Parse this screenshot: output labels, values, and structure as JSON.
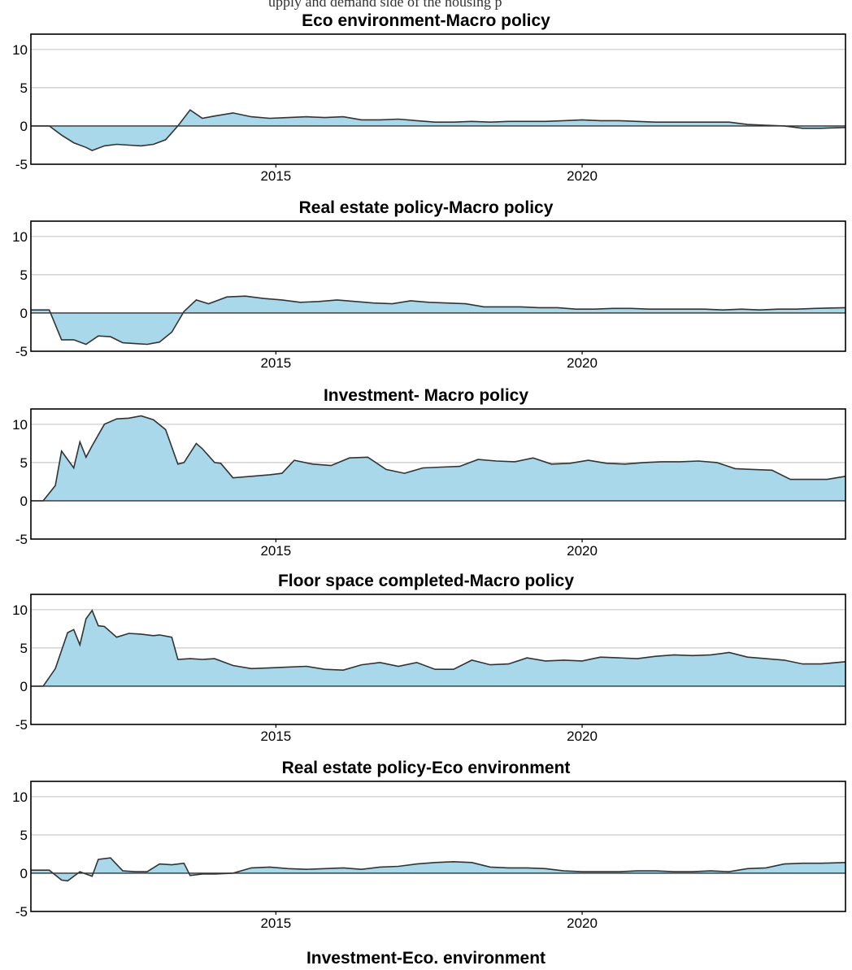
{
  "top_fragment": "upply and demand side of the housing p",
  "chart_data": [
    {
      "type": "area",
      "title": "Eco environment-Macro policy",
      "xlabel": "",
      "ylabel": "",
      "xlim": [
        2011.0,
        2024.3
      ],
      "ylim": [
        -5,
        12
      ],
      "yticks": [
        10,
        5,
        0,
        -5
      ],
      "xticks": [
        2015,
        2020
      ],
      "grid": true,
      "fill": "#a8d8ea",
      "x": [
        2011.0,
        2011.3,
        2011.5,
        2011.7,
        2011.9,
        2012.0,
        2012.2,
        2012.4,
        2012.6,
        2012.8,
        2013.0,
        2013.2,
        2013.4,
        2013.6,
        2013.8,
        2014.0,
        2014.3,
        2014.6,
        2014.9,
        2015.2,
        2015.5,
        2015.8,
        2016.1,
        2016.4,
        2016.7,
        2017.0,
        2017.3,
        2017.6,
        2017.9,
        2018.2,
        2018.5,
        2018.8,
        2019.1,
        2019.4,
        2019.7,
        2020.0,
        2020.3,
        2020.6,
        2020.9,
        2021.2,
        2021.5,
        2021.8,
        2022.1,
        2022.4,
        2022.7,
        2023.0,
        2023.3,
        2023.6,
        2023.9,
        2024.3
      ],
      "y": [
        0,
        0,
        -1.2,
        -2.2,
        -2.8,
        -3.2,
        -2.6,
        -2.4,
        -2.5,
        -2.6,
        -2.4,
        -1.8,
        0,
        2.1,
        1.0,
        1.3,
        1.7,
        1.2,
        1.0,
        1.1,
        1.2,
        1.1,
        1.2,
        0.8,
        0.8,
        0.9,
        0.7,
        0.5,
        0.5,
        0.6,
        0.5,
        0.6,
        0.6,
        0.6,
        0.7,
        0.8,
        0.7,
        0.7,
        0.6,
        0.5,
        0.5,
        0.5,
        0.5,
        0.5,
        0.2,
        0.1,
        0.0,
        -0.3,
        -0.3,
        -0.2
      ]
    },
    {
      "type": "area",
      "title": "Real estate policy-Macro policy",
      "xlabel": "",
      "ylabel": "",
      "xlim": [
        2011.0,
        2024.3
      ],
      "ylim": [
        -5,
        12
      ],
      "yticks": [
        10,
        5,
        0,
        -5
      ],
      "xticks": [
        2015,
        2020
      ],
      "grid": true,
      "fill": "#a8d8ea",
      "x": [
        2011.0,
        2011.3,
        2011.5,
        2011.7,
        2011.9,
        2012.1,
        2012.3,
        2012.5,
        2012.7,
        2012.9,
        2013.1,
        2013.3,
        2013.5,
        2013.7,
        2013.9,
        2014.2,
        2014.5,
        2014.8,
        2015.1,
        2015.4,
        2015.7,
        2016.0,
        2016.3,
        2016.6,
        2016.9,
        2017.2,
        2017.5,
        2017.8,
        2018.1,
        2018.4,
        2018.7,
        2019.0,
        2019.3,
        2019.6,
        2019.9,
        2020.2,
        2020.5,
        2020.8,
        2021.1,
        2021.4,
        2021.7,
        2022.0,
        2022.3,
        2022.6,
        2022.9,
        2023.2,
        2023.5,
        2023.8,
        2024.3
      ],
      "y": [
        0.4,
        0.4,
        -3.5,
        -3.5,
        -4.1,
        -3.0,
        -3.1,
        -3.9,
        -4.0,
        -4.1,
        -3.8,
        -2.5,
        0.2,
        1.7,
        1.2,
        2.1,
        2.2,
        1.9,
        1.7,
        1.4,
        1.5,
        1.7,
        1.5,
        1.3,
        1.2,
        1.6,
        1.4,
        1.3,
        1.2,
        0.8,
        0.8,
        0.8,
        0.7,
        0.7,
        0.5,
        0.5,
        0.6,
        0.6,
        0.5,
        0.5,
        0.5,
        0.5,
        0.4,
        0.5,
        0.4,
        0.5,
        0.5,
        0.6,
        0.7
      ]
    },
    {
      "type": "area",
      "title": "Investment- Macro policy",
      "xlabel": "",
      "ylabel": "",
      "xlim": [
        2011.0,
        2024.3
      ],
      "ylim": [
        -5,
        12
      ],
      "yticks": [
        10,
        5,
        0,
        -5
      ],
      "xticks": [
        2015,
        2020
      ],
      "grid": true,
      "fill": "#a8d8ea",
      "x": [
        2011.0,
        2011.2,
        2011.4,
        2011.5,
        2011.7,
        2011.8,
        2011.9,
        2012.0,
        2012.2,
        2012.4,
        2012.6,
        2012.8,
        2013.0,
        2013.2,
        2013.4,
        2013.5,
        2013.7,
        2013.8,
        2014.0,
        2014.1,
        2014.3,
        2014.6,
        2014.9,
        2015.1,
        2015.3,
        2015.6,
        2015.9,
        2016.2,
        2016.5,
        2016.8,
        2017.1,
        2017.4,
        2017.7,
        2018.0,
        2018.3,
        2018.6,
        2018.9,
        2019.2,
        2019.5,
        2019.8,
        2020.1,
        2020.4,
        2020.7,
        2021.0,
        2021.3,
        2021.6,
        2021.9,
        2022.2,
        2022.5,
        2022.8,
        2023.1,
        2023.4,
        2023.7,
        2024.0,
        2024.3
      ],
      "y": [
        0,
        0,
        2.0,
        6.5,
        4.3,
        7.7,
        5.7,
        7.2,
        10.0,
        10.7,
        10.8,
        11.1,
        10.6,
        9.3,
        4.8,
        5.0,
        7.5,
        6.8,
        5.0,
        4.9,
        3.0,
        3.2,
        3.4,
        3.6,
        5.3,
        4.8,
        4.6,
        5.6,
        5.7,
        4.1,
        3.6,
        4.3,
        4.4,
        4.5,
        5.4,
        5.2,
        5.1,
        5.6,
        4.8,
        4.9,
        5.3,
        4.9,
        4.8,
        5.0,
        5.1,
        5.1,
        5.2,
        5.0,
        4.2,
        4.1,
        4.0,
        2.8,
        2.8,
        2.8,
        3.2
      ]
    },
    {
      "type": "area",
      "title": "Floor space completed-Macro policy",
      "xlabel": "",
      "ylabel": "",
      "xlim": [
        2011.0,
        2024.3
      ],
      "ylim": [
        -5,
        12
      ],
      "yticks": [
        10,
        5,
        0,
        -5
      ],
      "xticks": [
        2015,
        2020
      ],
      "grid": true,
      "fill": "#a8d8ea",
      "x": [
        2011.0,
        2011.2,
        2011.4,
        2011.6,
        2011.7,
        2011.8,
        2011.9,
        2012.0,
        2012.1,
        2012.2,
        2012.4,
        2012.6,
        2012.8,
        2013.0,
        2013.1,
        2013.3,
        2013.4,
        2013.6,
        2013.8,
        2014.0,
        2014.3,
        2014.6,
        2014.9,
        2015.2,
        2015.5,
        2015.8,
        2016.1,
        2016.4,
        2016.7,
        2017.0,
        2017.3,
        2017.6,
        2017.9,
        2018.2,
        2018.5,
        2018.8,
        2019.1,
        2019.4,
        2019.7,
        2020.0,
        2020.3,
        2020.6,
        2020.9,
        2021.2,
        2021.5,
        2021.8,
        2022.1,
        2022.4,
        2022.7,
        2023.0,
        2023.3,
        2023.6,
        2023.9,
        2024.3
      ],
      "y": [
        0,
        0,
        2.3,
        7.0,
        7.4,
        5.4,
        8.8,
        9.9,
        7.9,
        7.8,
        6.4,
        6.9,
        6.8,
        6.6,
        6.7,
        6.4,
        3.5,
        3.6,
        3.5,
        3.6,
        2.7,
        2.3,
        2.4,
        2.5,
        2.6,
        2.2,
        2.1,
        2.8,
        3.1,
        2.6,
        3.1,
        2.2,
        2.2,
        3.4,
        2.8,
        2.9,
        3.7,
        3.3,
        3.4,
        3.3,
        3.8,
        3.7,
        3.6,
        3.9,
        4.1,
        4.0,
        4.1,
        4.4,
        3.8,
        3.6,
        3.4,
        2.9,
        2.9,
        3.2
      ]
    },
    {
      "type": "area",
      "title": "Real estate policy-Eco environment",
      "xlabel": "",
      "ylabel": "",
      "xlim": [
        2011.0,
        2024.3
      ],
      "ylim": [
        -5,
        12
      ],
      "yticks": [
        10,
        5,
        0,
        -5
      ],
      "xticks": [
        2015,
        2020
      ],
      "grid": true,
      "fill": "#a8d8ea",
      "x": [
        2011.0,
        2011.3,
        2011.5,
        2011.6,
        2011.8,
        2012.0,
        2012.1,
        2012.3,
        2012.5,
        2012.7,
        2012.9,
        2013.1,
        2013.3,
        2013.5,
        2013.6,
        2013.8,
        2014.0,
        2014.3,
        2014.6,
        2014.9,
        2015.2,
        2015.5,
        2015.8,
        2016.1,
        2016.4,
        2016.7,
        2017.0,
        2017.3,
        2017.6,
        2017.9,
        2018.2,
        2018.5,
        2018.8,
        2019.1,
        2019.4,
        2019.7,
        2020.0,
        2020.3,
        2020.6,
        2020.9,
        2021.2,
        2021.5,
        2021.8,
        2022.1,
        2022.4,
        2022.7,
        2023.0,
        2023.3,
        2023.6,
        2023.9,
        2024.3
      ],
      "y": [
        0.4,
        0.4,
        -0.9,
        -1.0,
        0.2,
        -0.4,
        1.8,
        2.0,
        0.3,
        0.2,
        0.2,
        1.2,
        1.1,
        1.3,
        -0.3,
        -0.1,
        -0.1,
        0.0,
        0.7,
        0.8,
        0.6,
        0.5,
        0.6,
        0.7,
        0.5,
        0.8,
        0.9,
        1.2,
        1.4,
        1.5,
        1.4,
        0.8,
        0.7,
        0.7,
        0.6,
        0.3,
        0.2,
        0.2,
        0.2,
        0.3,
        0.3,
        0.2,
        0.2,
        0.3,
        0.2,
        0.6,
        0.7,
        1.2,
        1.3,
        1.3,
        1.4
      ]
    }
  ],
  "bottom_title": "Investment-Eco. environment"
}
